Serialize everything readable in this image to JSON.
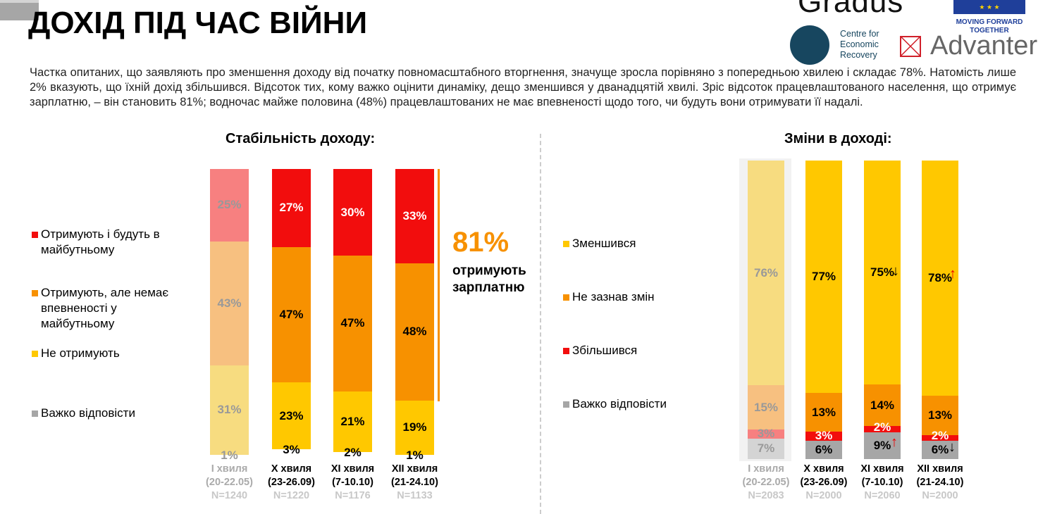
{
  "title": "ДОХІД ПІД ЧАС ВІЙНИ",
  "intro": "Частка опитаних, що заявляють про зменшення доходу від початку повномасштабного вторгнення, значуще зросла порівняно з попередньою хвилею і складає 78%. Натомість лише 2% вказують, що їхній дохід збільшився. Відсоток тих, кому важко оцінити динаміку, дещо зменшився у дванадцятій хвилі. Зріс відсоток працевлаштованого населення, що отримує зарплатню, – він становить 81%; водночас майже половина (48%) працевлаштованих не має впевненості щодо того, чи будуть вони отримувати її надалі.",
  "logos": {
    "gradus": "Gradus",
    "eu": "MOVING FORWARD TOGETHER",
    "cer": "Centre for Economic Recovery",
    "advanter": "Advanter"
  },
  "callout": {
    "value": "81%",
    "label": "отримують зарплатню"
  },
  "chart_data": [
    {
      "type": "bar",
      "stacked": true,
      "title": "Стабільність доходу:",
      "categories": [
        "I хвиля",
        "X хвиля",
        "XI хвиля",
        "XII хвиля"
      ],
      "dates": [
        "(20-22.05)",
        "(23-26.09)",
        "(7-10.10)",
        "(21-24.10)"
      ],
      "n": [
        "N=1240",
        "N=1220",
        "N=1176",
        "N=1133"
      ],
      "series": [
        {
          "name": "Отримують і будуть в майбутньому",
          "color": "#f20d0d",
          "values": [
            25,
            27,
            30,
            33
          ]
        },
        {
          "name": "Отримують, але немає впевненості у майбутньому",
          "color": "#f79100",
          "values": [
            43,
            47,
            47,
            48
          ]
        },
        {
          "name": "Не отримують",
          "color": "#ffc800",
          "values": [
            31,
            23,
            21,
            19
          ]
        },
        {
          "name": "Важко відповісти",
          "color": "#a6a6a6",
          "values": [
            1,
            3,
            2,
            1
          ]
        }
      ],
      "labels": [
        [
          "25%",
          "27%",
          "30%",
          "33%"
        ],
        [
          "43%",
          "47%",
          "47%",
          "48%"
        ],
        [
          "31%",
          "23%",
          "21%",
          "19%"
        ],
        [
          "1%",
          "3%",
          "2%",
          "1%"
        ]
      ]
    },
    {
      "type": "bar",
      "stacked": true,
      "title": "Зміни в доході:",
      "categories": [
        "I хвиля",
        "X хвиля",
        "XI хвиля",
        "XII хвиля"
      ],
      "dates": [
        "(20-22.05)",
        "(23-26.09)",
        "(7-10.10)",
        "(21-24.10)"
      ],
      "n": [
        "N=2083",
        "N=2000",
        "N=2060",
        "N=2000"
      ],
      "series": [
        {
          "name": "Зменшився",
          "color": "#ffc800",
          "values": [
            76,
            77,
            75,
            78
          ]
        },
        {
          "name": "Не зазнав змін",
          "color": "#f79100",
          "values": [
            15,
            13,
            14,
            13
          ]
        },
        {
          "name": "Збільшився",
          "color": "#f20d0d",
          "values": [
            3,
            3,
            2,
            2
          ]
        },
        {
          "name": "Важко відповісти",
          "color": "#a6a6a6",
          "values": [
            7,
            6,
            9,
            6
          ]
        }
      ],
      "labels": [
        [
          "76%",
          "77%",
          "75%",
          "78%"
        ],
        [
          "15%",
          "13%",
          "14%",
          "13%"
        ],
        [
          "3%",
          "3%",
          "2%",
          "2%"
        ],
        [
          "7%",
          "6%",
          "9%",
          "6%"
        ]
      ]
    }
  ]
}
